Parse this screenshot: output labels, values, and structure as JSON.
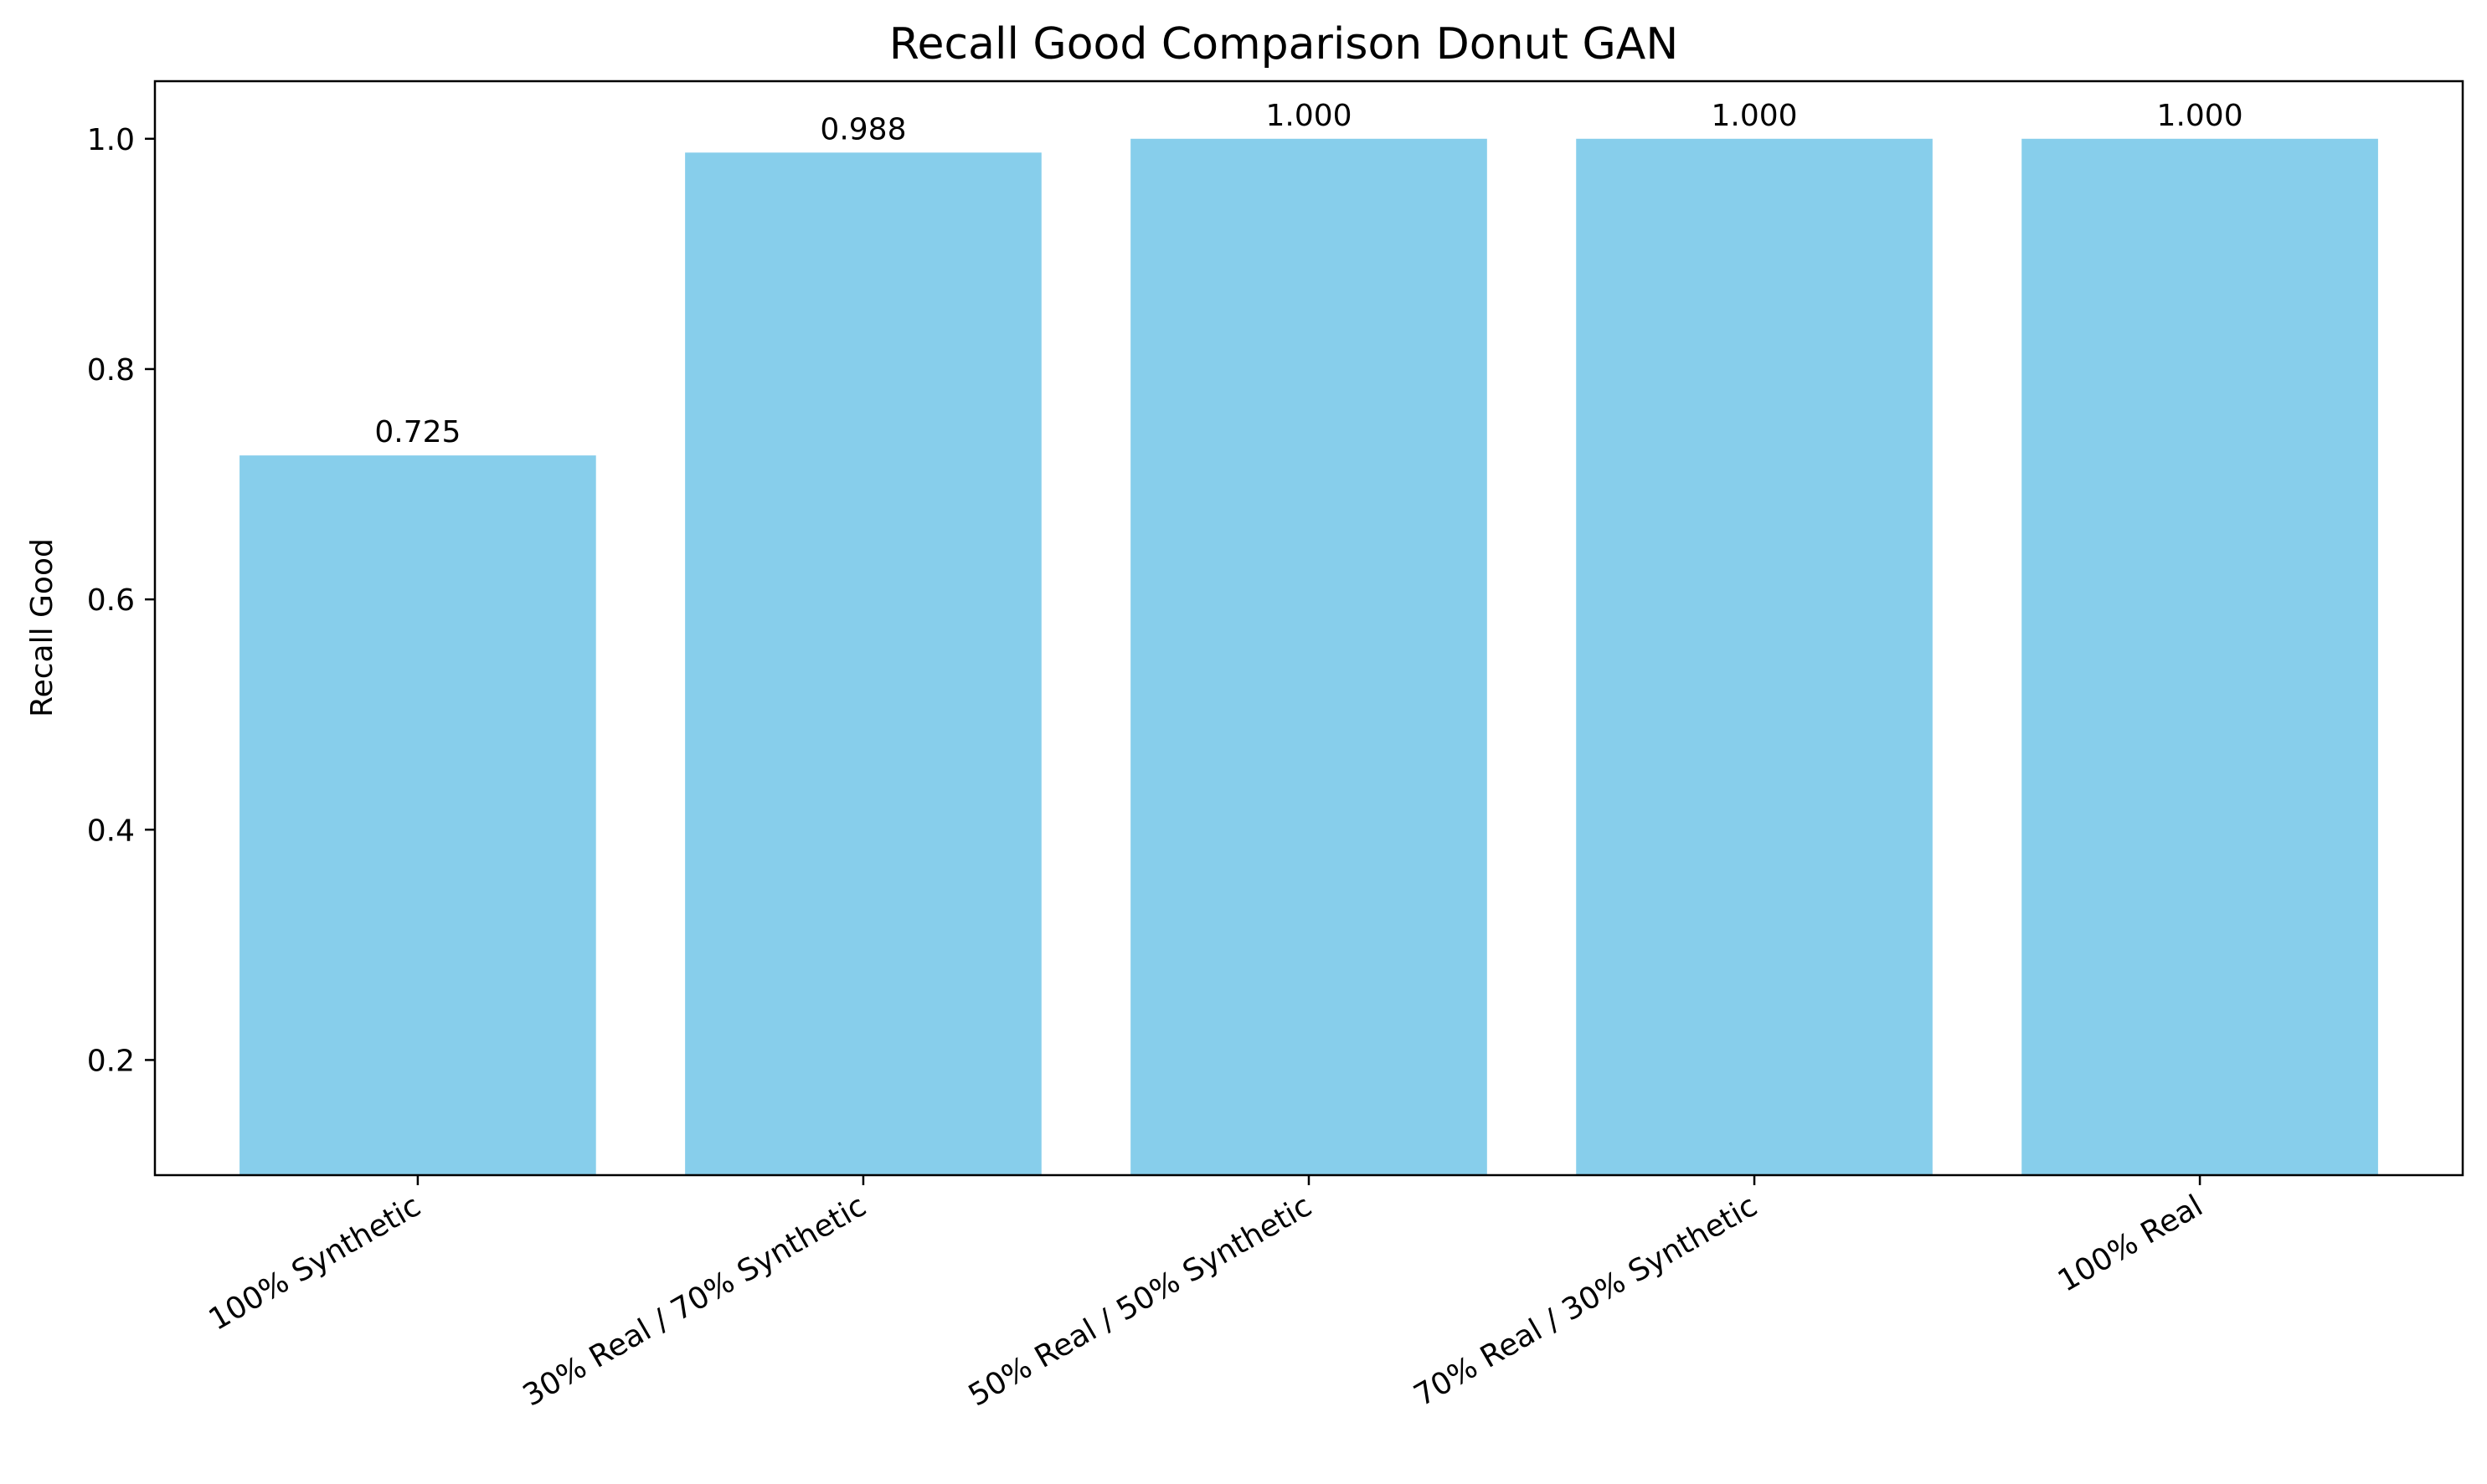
{
  "chart_data": {
    "type": "bar",
    "title": "Recall Good Comparison Donut GAN",
    "xlabel": "",
    "ylabel": "Recall Good",
    "categories": [
      "100% Synthetic",
      "30% Real / 70% Synthetic",
      "50% Real / 50% Synthetic",
      "70% Real / 30% Synthetic",
      "100% Real"
    ],
    "values": [
      0.725,
      0.988,
      1.0,
      1.0,
      1.0
    ],
    "data_labels": [
      "0.725",
      "0.988",
      "1.000",
      "1.000",
      "1.000"
    ],
    "ylim": [
      0.1,
      1.05
    ],
    "yticks": [
      0.2,
      0.4,
      0.6,
      0.8,
      1.0
    ],
    "ytick_labels": [
      "0.2",
      "0.4",
      "0.6",
      "0.8",
      "1.0"
    ],
    "grid": false,
    "legend": "none",
    "bar_color": "#87CEEB",
    "axis_color": "#000000"
  }
}
